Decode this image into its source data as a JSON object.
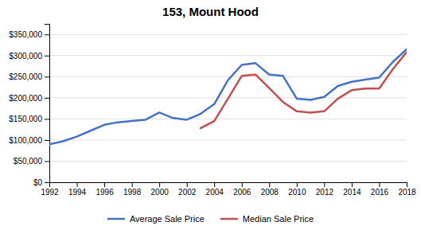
{
  "chart_data": {
    "type": "line",
    "title": "153, Mount Hood",
    "x": [
      1992,
      1993,
      1994,
      1995,
      1996,
      1997,
      1998,
      1999,
      2000,
      2001,
      2002,
      2003,
      2004,
      2005,
      2006,
      2007,
      2008,
      2009,
      2010,
      2011,
      2012,
      2013,
      2014,
      2015,
      2016,
      2017,
      2018
    ],
    "series": [
      {
        "name": "Average Sale Price",
        "color": "#4472C4",
        "values": [
          90000,
          97000,
          108000,
          122000,
          136000,
          142000,
          145000,
          148000,
          165000,
          152000,
          148000,
          162000,
          185000,
          242000,
          278000,
          282000,
          255000,
          252000,
          198000,
          195000,
          202000,
          228000,
          238000,
          243000,
          248000,
          285000,
          315000
        ]
      },
      {
        "name": "Median Sale Price",
        "color": "#C0504D",
        "values": [
          null,
          null,
          null,
          null,
          null,
          null,
          null,
          null,
          null,
          null,
          null,
          128000,
          145000,
          198000,
          252000,
          255000,
          223000,
          190000,
          168000,
          165000,
          168000,
          198000,
          218000,
          222000,
          222000,
          268000,
          308000
        ]
      }
    ],
    "xlim": [
      1992,
      2018
    ],
    "xticks": [
      1992,
      1994,
      1996,
      1998,
      2000,
      2002,
      2004,
      2006,
      2008,
      2010,
      2012,
      2014,
      2016,
      2018
    ],
    "ylim": [
      0,
      375000
    ],
    "yticks": [
      {
        "value": 0,
        "label": "$0"
      },
      {
        "value": 50000,
        "label": "$50,000"
      },
      {
        "value": 100000,
        "label": "$100,000"
      },
      {
        "value": 150000,
        "label": "$150,000"
      },
      {
        "value": 200000,
        "label": "$200,000"
      },
      {
        "value": 250000,
        "label": "$250,000"
      },
      {
        "value": 300000,
        "label": "$300,000"
      },
      {
        "value": 350000,
        "label": "$350,000"
      }
    ],
    "grid": true,
    "legend": "bottom"
  }
}
